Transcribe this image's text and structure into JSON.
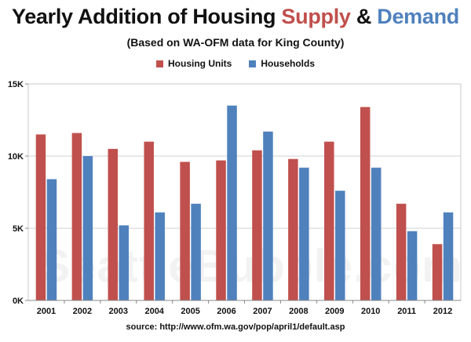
{
  "title": {
    "prefix": "Yearly Addition of Housing ",
    "supply": "Supply",
    "joiner": " & ",
    "demand": "Demand"
  },
  "subtitle": "(Based on WA-OFM data for King County)",
  "source": "source:  http://www.ofm.wa.gov/pop/april1/default.asp",
  "watermark": "SeattleBubble.com",
  "chart_data": {
    "type": "bar",
    "categories": [
      "2001",
      "2002",
      "2003",
      "2004",
      "2005",
      "2006",
      "2007",
      "2008",
      "2009",
      "2010",
      "2011",
      "2012"
    ],
    "series": [
      {
        "name": "Housing Units",
        "color": "#c0504d",
        "values": [
          11500,
          11600,
          10500,
          11000,
          9600,
          9700,
          10400,
          9800,
          11000,
          13400,
          6700,
          3900
        ]
      },
      {
        "name": "Households",
        "color": "#4f81bd",
        "values": [
          8400,
          10000,
          5200,
          6100,
          6700,
          13500,
          11700,
          9200,
          7600,
          9200,
          4800,
          6100
        ]
      }
    ],
    "yticks": [
      "0K",
      "5K",
      "10K",
      "15K"
    ],
    "ylim": [
      0,
      15000
    ],
    "grid": true,
    "legend": "top-center"
  }
}
